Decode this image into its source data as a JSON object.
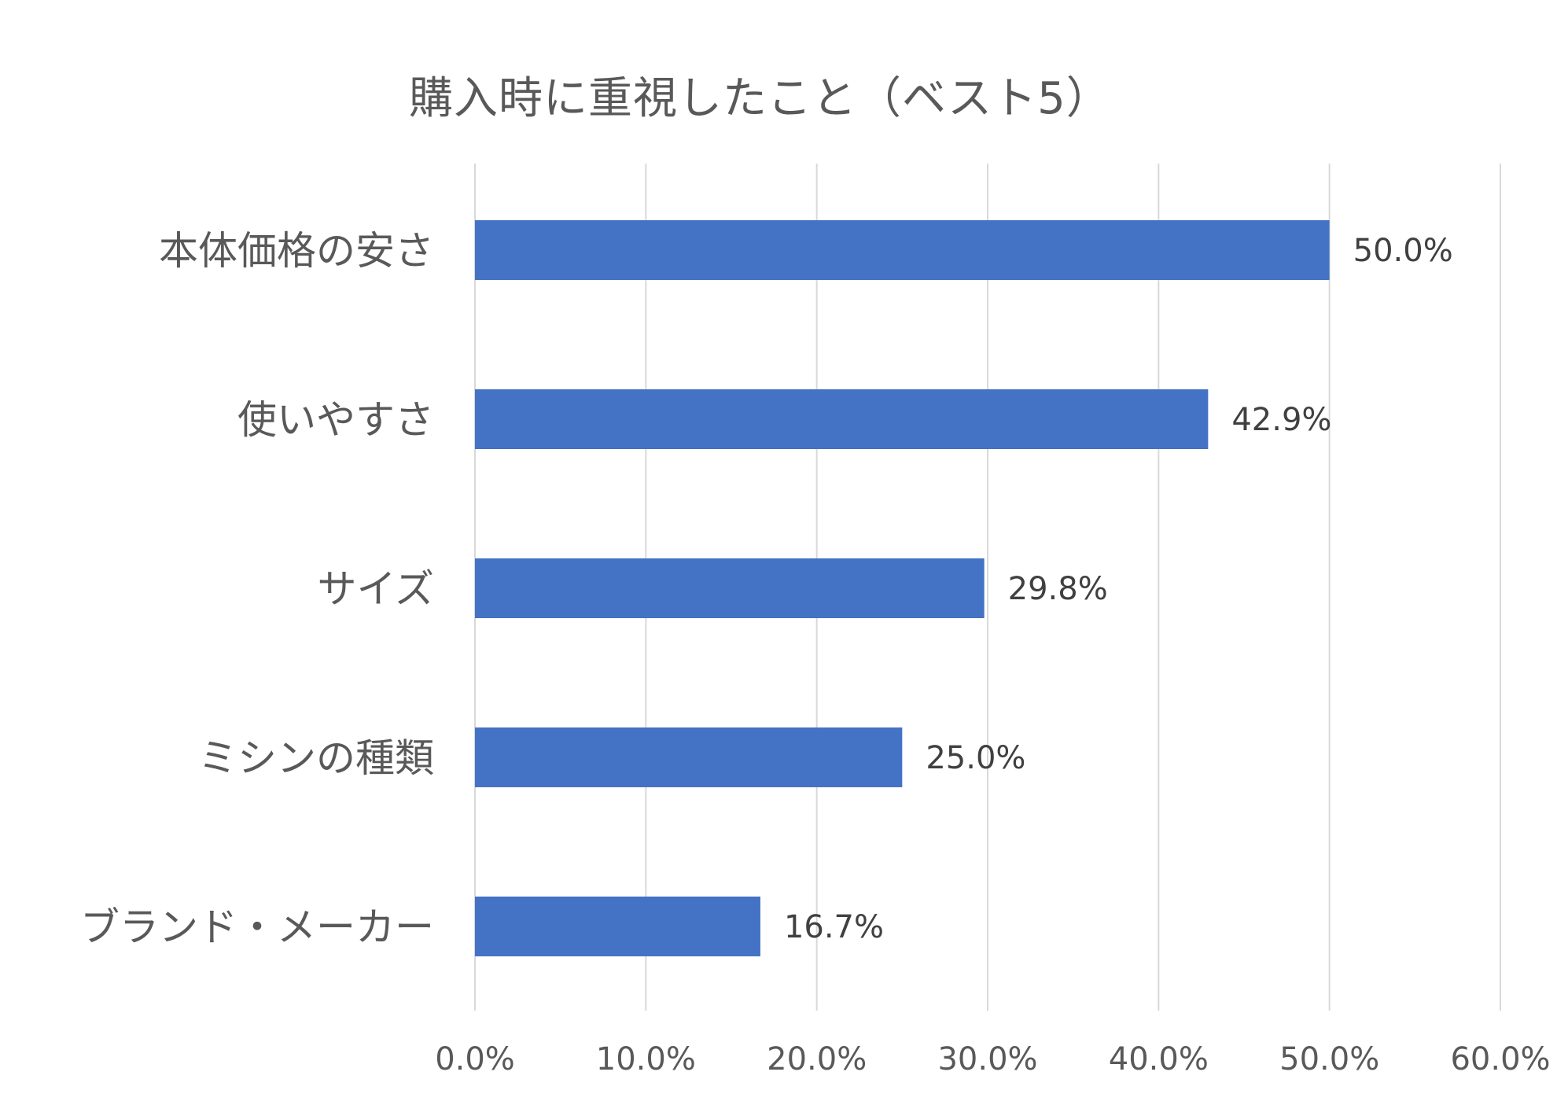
{
  "chart_data": {
    "type": "bar",
    "orientation": "horizontal",
    "title": "購入時に重視したこと（ベスト5）",
    "categories": [
      "本体価格の安さ",
      "使いやすさ",
      "サイズ",
      "ミシンの種類",
      "ブランド・メーカー"
    ],
    "values": [
      50.0,
      42.9,
      29.8,
      25.0,
      16.7
    ],
    "data_labels": [
      "50.0%",
      "42.9%",
      "29.8%",
      "25.0%",
      "16.7%"
    ],
    "xlim": [
      0,
      60
    ],
    "x_ticks": [
      0,
      10,
      20,
      30,
      40,
      50,
      60
    ],
    "x_tick_labels": [
      "0.0%",
      "10.0%",
      "20.0%",
      "30.0%",
      "40.0%",
      "50.0%",
      "60.0%"
    ],
    "xlabel": "",
    "ylabel": "",
    "grid": "vertical",
    "legend": "none",
    "bar_color": "#4472C4",
    "grid_color": "#D9D9D9",
    "text_color": "#595959",
    "label_color": "#404040"
  }
}
